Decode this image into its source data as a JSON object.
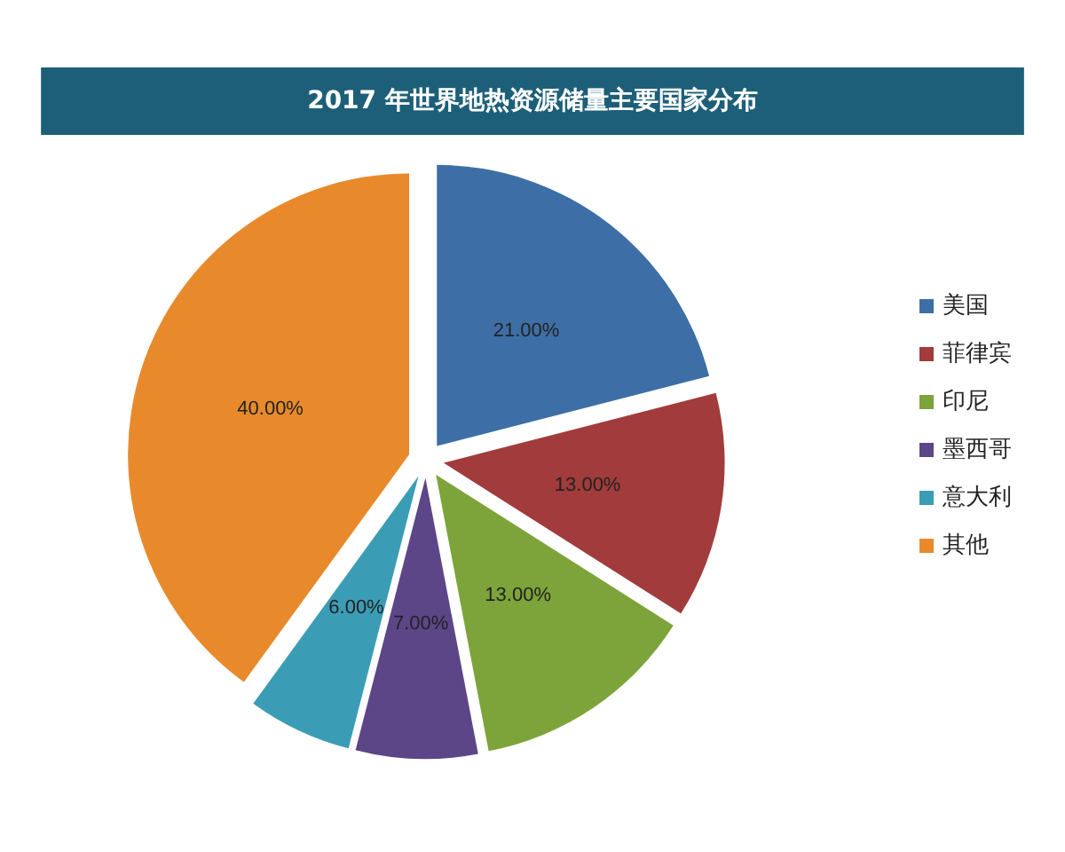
{
  "chart_data": {
    "type": "pie",
    "title": "2017 年世界地热资源储量主要国家分布",
    "categories": [
      "美国",
      "菲律宾",
      "印尼",
      "墨西哥",
      "意大利",
      "其他"
    ],
    "values": [
      21,
      13,
      13,
      7,
      6,
      40
    ],
    "value_labels": [
      "21.00%",
      "13.00%",
      "13.00%",
      "7.00%",
      "6.00%",
      "40.00%"
    ],
    "colors": [
      "#3d6fa6",
      "#a23b3b",
      "#7da43a",
      "#5c4688",
      "#3b9db5",
      "#e88a2c"
    ],
    "legend": "right"
  }
}
